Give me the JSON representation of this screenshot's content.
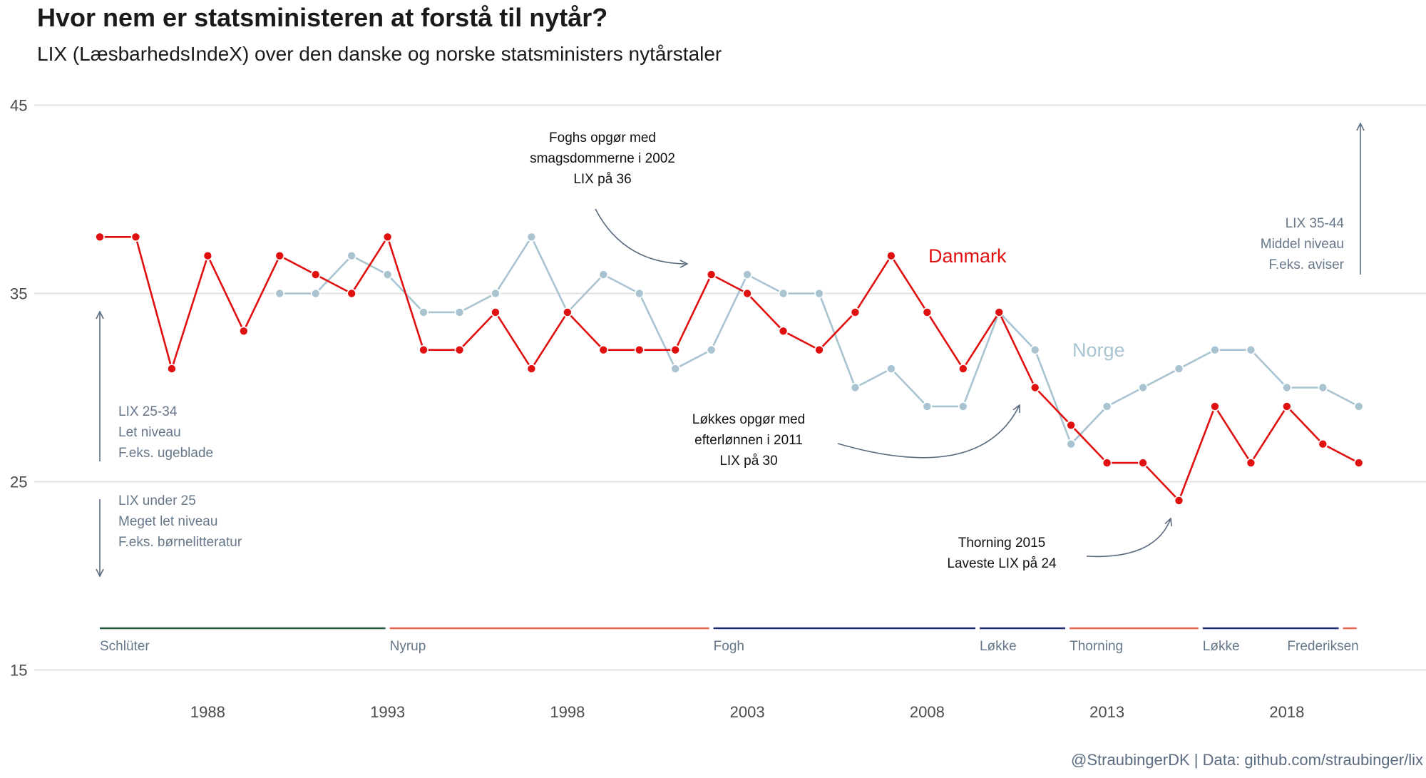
{
  "title": "Hvor nem er statsministeren at forstå til nytår?",
  "subtitle": "LIX (LæsbarhedsIndeX) over den danske og norske statsministers nytårstaler",
  "caption": "@StraubingerDK | Data: github.com/straubinger/lix",
  "colors": {
    "denmark": "#e01010",
    "norway": "#a9c4d0",
    "annotation": "#5a6b80",
    "grid": "#e3e3e3"
  },
  "chart_data": {
    "type": "line",
    "title": "Hvor nem er statsministeren at forstå til nytår?",
    "subtitle": "LIX (LæsbarhedsIndeX) over den danske og norske statsministers nytårstaler",
    "xlabel": "",
    "ylabel": "",
    "xlim": [
      1983.5,
      2021.5
    ],
    "ylim": [
      15,
      45
    ],
    "y_ticks": [
      15,
      25,
      35,
      45
    ],
    "x_ticks": [
      1988,
      1993,
      1998,
      2003,
      2008,
      2013,
      2018
    ],
    "grid": "horizontal",
    "series": [
      {
        "name": "Danmark",
        "color": "#e01010",
        "x": [
          1985,
          1986,
          1987,
          1988,
          1989,
          1990,
          1991,
          1992,
          1993,
          1994,
          1995,
          1996,
          1997,
          1998,
          1999,
          2000,
          2001,
          2002,
          2003,
          2004,
          2005,
          2006,
          2007,
          2008,
          2009,
          2010,
          2011,
          2012,
          2013,
          2014,
          2015,
          2016,
          2017,
          2018,
          2019,
          2020
        ],
        "values": [
          38,
          38,
          31,
          37,
          33,
          37,
          36,
          35,
          38,
          32,
          32,
          34,
          31,
          34,
          32,
          32,
          32,
          36,
          35,
          33,
          32,
          34,
          37,
          34,
          31,
          34,
          30,
          28,
          26,
          26,
          24,
          29,
          26,
          29,
          27,
          26
        ]
      },
      {
        "name": "Norge",
        "color": "#a9c4d0",
        "x": [
          1990,
          1991,
          1992,
          1993,
          1994,
          1995,
          1996,
          1997,
          1998,
          1999,
          2000,
          2001,
          2002,
          2003,
          2004,
          2005,
          2006,
          2007,
          2008,
          2009,
          2010,
          2011,
          2012,
          2013,
          2014,
          2015,
          2016,
          2017,
          2018,
          2019,
          2020
        ],
        "values": [
          35,
          35,
          37,
          36,
          34,
          34,
          35,
          38,
          34,
          36,
          35,
          31,
          32,
          36,
          35,
          35,
          30,
          31,
          29,
          29,
          34,
          32,
          27,
          29,
          30,
          31,
          32,
          32,
          30,
          30,
          29
        ]
      }
    ],
    "annotations": [
      {
        "lines": [
          "Foghs opgør med",
          "smagsdommerne i 2002",
          "LIX på 36"
        ]
      },
      {
        "lines": [
          "Løkkes opgør med",
          "efterlønnen i 2011",
          "LIX på 30"
        ]
      },
      {
        "lines": [
          "Thorning 2015",
          "Laveste LIX på 24"
        ]
      }
    ],
    "levels": [
      {
        "lines": [
          "LIX 35-44",
          "Middel niveau",
          "F.eks. aviser"
        ]
      },
      {
        "lines": [
          "LIX 25-34",
          "Let niveau",
          "F.eks. ugeblade"
        ]
      },
      {
        "lines": [
          "LIX under 25",
          "Meget let niveau",
          "F.eks. børnelitteratur"
        ]
      }
    ],
    "prime_ministers": [
      {
        "name": "Schlüter",
        "start": 1985,
        "end": 1993,
        "color": "#1f5a3a"
      },
      {
        "name": "Nyrup",
        "start": 1993,
        "end": 2002,
        "color": "#e8604c"
      },
      {
        "name": "Fogh",
        "start": 2002,
        "end": 2009.4,
        "color": "#1c2a72"
      },
      {
        "name": "Løkke",
        "start": 2009.4,
        "end": 2011.9,
        "color": "#1c2a72"
      },
      {
        "name": "Thorning",
        "start": 2011.9,
        "end": 2015.6,
        "color": "#e8604c"
      },
      {
        "name": "Løkke",
        "start": 2015.6,
        "end": 2019.5,
        "color": "#1c2a72"
      },
      {
        "name": "Frederiksen",
        "start": 2019.5,
        "end": 2020,
        "color": "#e8604c"
      }
    ]
  }
}
